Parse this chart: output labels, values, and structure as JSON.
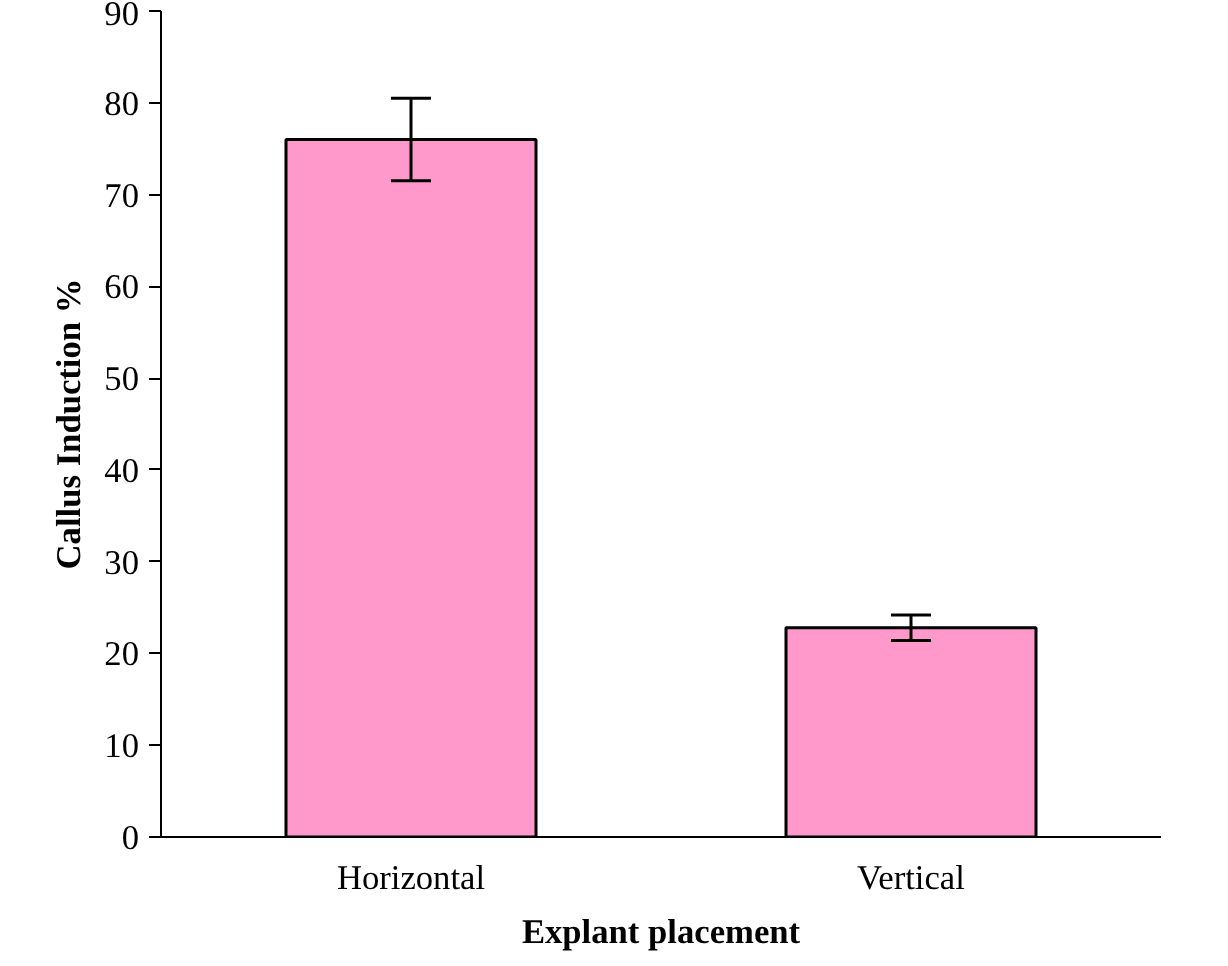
{
  "chart_data": {
    "type": "bar",
    "xlabel": "Explant placement",
    "ylabel": "Callus Induction %",
    "categories": [
      "Horizontal",
      "Vertical"
    ],
    "values": [
      76,
      22.8
    ],
    "errors": [
      4.5,
      1.4
    ],
    "color": "#ff99cc",
    "ylim": [
      0,
      90
    ],
    "yticks": [
      0,
      10,
      20,
      30,
      40,
      50,
      60,
      70,
      80,
      90
    ],
    "grid": false
  }
}
